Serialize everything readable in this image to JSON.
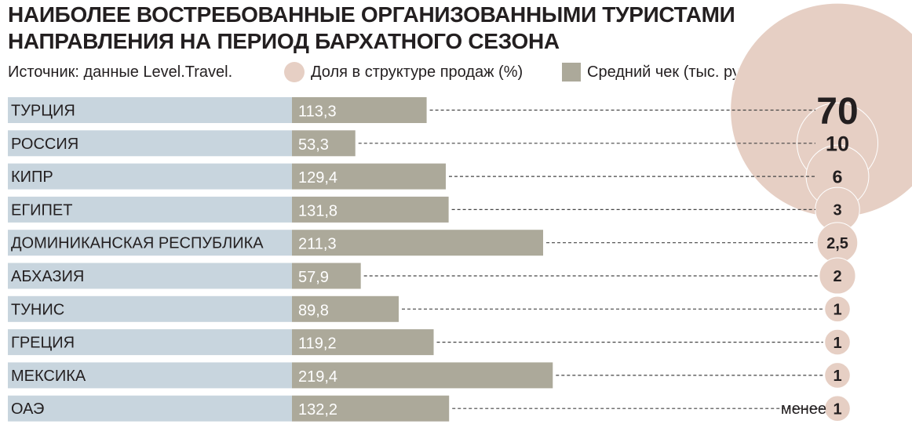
{
  "title_lines": [
    "НАИБОЛЕЕ ВОСТРЕБОВАННЫЕ ОРГАНИЗОВАННЫМИ ТУРИСТАМИ",
    "НАПРАВЛЕНИЯ НА ПЕРИОД БАРХАТНОГО СЕЗОНА"
  ],
  "source": "Источник: данные Level.Travel.",
  "legend": {
    "share_label": "Доля в структуре продаж (%)",
    "check_label": "Средний чек (тыс. руб.)"
  },
  "colors": {
    "label_band": "#c8d5de",
    "bar": "#aca99a",
    "circle": "#e6cfc4",
    "circle_stroke": "#ffffff",
    "leader": "#444444",
    "bar_text": "#ffffff"
  },
  "chart_data": {
    "type": "bar",
    "orientation": "horizontal",
    "categories": [
      "ТУРЦИЯ",
      "РОССИЯ",
      "КИПР",
      "ЕГИПЕТ",
      "ДОМИНИКАНСКАЯ РЕСПУБЛИКА",
      "АБХАЗИЯ",
      "ТУНИС",
      "ГРЕЦИЯ",
      "МЕКСИКА",
      "ОАЭ"
    ],
    "series": [
      {
        "name": "Средний чек (тыс. руб.)",
        "values": [
          113.3,
          53.3,
          129.4,
          131.8,
          211.3,
          57.9,
          89.8,
          119.2,
          219.4,
          132.2
        ],
        "labels": [
          "113,3",
          "53,3",
          "129,4",
          "131,8",
          "211,3",
          "57,9",
          "89,8",
          "119,2",
          "219,4",
          "132,2"
        ]
      },
      {
        "name": "Доля в структуре продаж (%)",
        "values": [
          70,
          10,
          6,
          3,
          2.5,
          2,
          1,
          1,
          1,
          1
        ],
        "labels": [
          "70",
          "10",
          "6",
          "3",
          "2,5",
          "2",
          "1",
          "1",
          "1",
          "1"
        ]
      }
    ],
    "annotations": [
      {
        "category": "ОАЭ",
        "text": "менее"
      }
    ],
    "xlim": [
      0,
      240
    ]
  }
}
